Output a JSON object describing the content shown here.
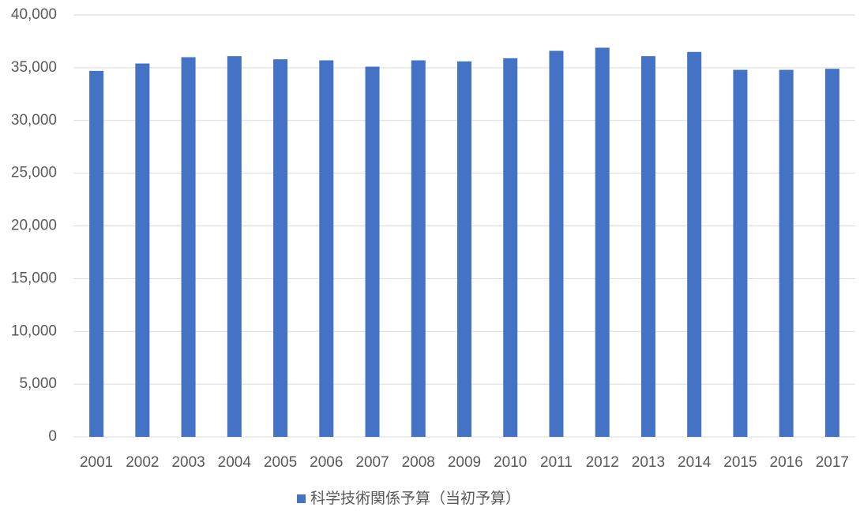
{
  "chart_data": {
    "type": "bar",
    "categories": [
      "2001",
      "2002",
      "2003",
      "2004",
      "2005",
      "2006",
      "2007",
      "2008",
      "2009",
      "2010",
      "2011",
      "2012",
      "2013",
      "2014",
      "2015",
      "2016",
      "2017"
    ],
    "series": [
      {
        "name": "科学技術関係予算（当初予算）",
        "color": "#4472c4",
        "values": [
          34700,
          35400,
          36000,
          36100,
          35800,
          35700,
          35100,
          35700,
          35600,
          35900,
          36600,
          36900,
          36100,
          36500,
          34800,
          34800,
          34900
        ]
      }
    ],
    "ylim": [
      0,
      40000
    ],
    "yticks": [
      0,
      {
        "value": 5000,
        "label": "5,000"
      },
      {
        "value": 10000,
        "label": "10,000"
      },
      {
        "value": 15000,
        "label": "15,000"
      },
      {
        "value": 20000,
        "label": "20,000"
      },
      {
        "value": 25000,
        "label": "25,000"
      },
      {
        "value": 30000,
        "label": "30,000"
      },
      {
        "value": 35000,
        "label": "35,000"
      },
      {
        "value": 40000,
        "label": "40,000"
      }
    ],
    "grid": true,
    "legend": "bottom"
  }
}
